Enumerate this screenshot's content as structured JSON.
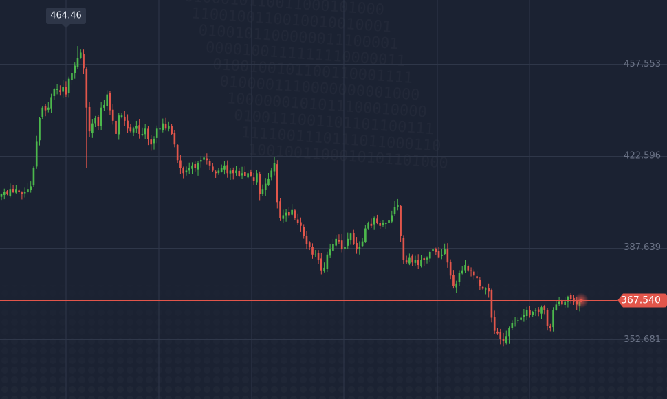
{
  "colors": {
    "background": "#1b2232",
    "grid": "#2f3749",
    "up": "#4cb84c",
    "down": "#e2564b",
    "current_line": "#e2564b",
    "axis_text": "#6b7386",
    "tooltip_bg": "#2e3648"
  },
  "tooltip": {
    "value": "464.46"
  },
  "current_price": {
    "label": "367.540",
    "value": 367.54
  },
  "chart_data": {
    "type": "candlestick",
    "title": "",
    "xlabel": "",
    "ylabel": "",
    "ylim": [
      330.0,
      482.0
    ],
    "y_ticks": [
      {
        "value": 457.553,
        "label": "457.553"
      },
      {
        "value": 422.596,
        "label": "422.596"
      },
      {
        "value": 387.639,
        "label": "387.639"
      },
      {
        "value": 352.681,
        "label": "352.681"
      }
    ],
    "grid": true,
    "closes": [
      408,
      409,
      408,
      410,
      409,
      410,
      409,
      408,
      409,
      410,
      411,
      418,
      428,
      437,
      441,
      440,
      441,
      445,
      448,
      448,
      447,
      449,
      446,
      452,
      454,
      457,
      460,
      462,
      456,
      441,
      432,
      435,
      437,
      434,
      441,
      442,
      446,
      440,
      436,
      431,
      438,
      438,
      436,
      433,
      432,
      433,
      434,
      431,
      431,
      433,
      429,
      427,
      429,
      433,
      433,
      435,
      433,
      434,
      431,
      427,
      421,
      418,
      416,
      417,
      418,
      419,
      418,
      420,
      421,
      422,
      421,
      419,
      417,
      416,
      417,
      418,
      419,
      416,
      417,
      416,
      417,
      415,
      416,
      415,
      416,
      415,
      413,
      416,
      408,
      410,
      412,
      414,
      417,
      420,
      405,
      399,
      400,
      401,
      400,
      402,
      399,
      397,
      396,
      392,
      389,
      388,
      385,
      385,
      383,
      379,
      380,
      385,
      387,
      389,
      391,
      390,
      387,
      388,
      391,
      393,
      389,
      387,
      388,
      390,
      395,
      397,
      396,
      399,
      397,
      396,
      397,
      397,
      398,
      400,
      403,
      404,
      392,
      383,
      382,
      384,
      382,
      383,
      381,
      383,
      383,
      384,
      386,
      387,
      386,
      384,
      385,
      387,
      382,
      377,
      373,
      374,
      378,
      379,
      381,
      379,
      379,
      377,
      376,
      373,
      372,
      372,
      371,
      361,
      356,
      355,
      353,
      352,
      354,
      357,
      359,
      359,
      360,
      361,
      362,
      364,
      362,
      363,
      364,
      363,
      365,
      364,
      358,
      357,
      364,
      366,
      367,
      366,
      367,
      369,
      368,
      367,
      366,
      367
    ],
    "high": 464.46,
    "low": 351.0,
    "last": 367.54
  }
}
